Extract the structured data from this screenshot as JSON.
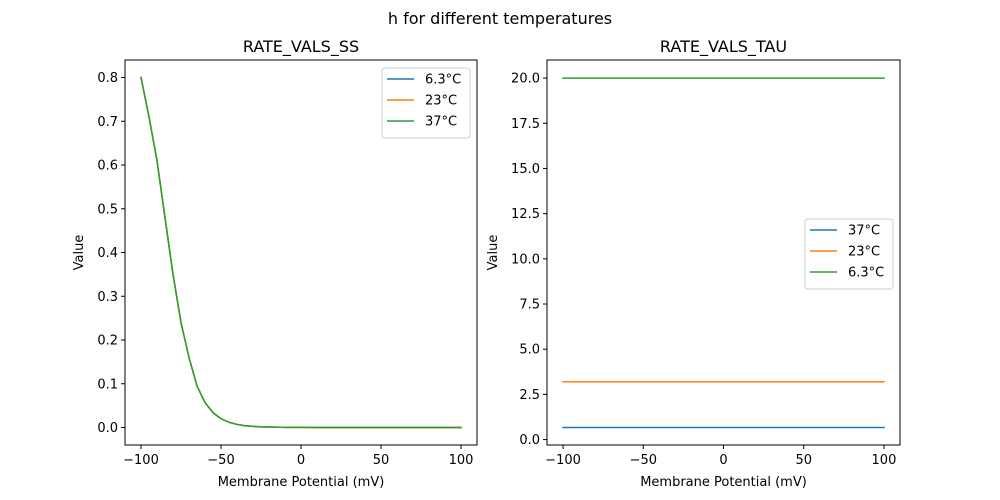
{
  "suptitle": "h for different temperatures",
  "colors": {
    "blue": "#1f77b4",
    "orange": "#ff7f0e",
    "green": "#2ca02c"
  },
  "chart_data": [
    {
      "type": "line",
      "title": "RATE_VALS_SS",
      "xlabel": "Membrane Potential (mV)",
      "ylabel": "Value",
      "xlim": [
        -110,
        110
      ],
      "ylim": [
        -0.04,
        0.84
      ],
      "xticks": [
        -100,
        -50,
        0,
        50,
        100
      ],
      "xtick_labels": [
        "−100",
        "−50",
        "0",
        "50",
        "100"
      ],
      "yticks": [
        0.0,
        0.1,
        0.2,
        0.3,
        0.4,
        0.5,
        0.6,
        0.7,
        0.8
      ],
      "ytick_labels": [
        "0.0",
        "0.1",
        "0.2",
        "0.3",
        "0.4",
        "0.5",
        "0.6",
        "0.7",
        "0.8"
      ],
      "legend_position": "top-right",
      "x": [
        -100,
        -95,
        -90,
        -85,
        -80,
        -75,
        -70,
        -65,
        -60,
        -55,
        -50,
        -45,
        -40,
        -35,
        -30,
        -25,
        -20,
        -10,
        0,
        10,
        20,
        40,
        60,
        80,
        100
      ],
      "series": [
        {
          "name": "6.3°C",
          "color": "#1f77b4",
          "values": [
            0.8,
            0.71,
            0.61,
            0.48,
            0.35,
            0.24,
            0.16,
            0.095,
            0.057,
            0.034,
            0.02,
            0.012,
            0.007,
            0.004,
            0.0025,
            0.0015,
            0.001,
            0.0004,
            0.0002,
            0.0001,
            0.0001,
            0.0,
            0.0,
            0.0,
            0.0
          ]
        },
        {
          "name": "23°C",
          "color": "#ff7f0e",
          "values": [
            0.8,
            0.71,
            0.61,
            0.48,
            0.35,
            0.24,
            0.16,
            0.095,
            0.057,
            0.034,
            0.02,
            0.012,
            0.007,
            0.004,
            0.0025,
            0.0015,
            0.001,
            0.0004,
            0.0002,
            0.0001,
            0.0001,
            0.0,
            0.0,
            0.0,
            0.0
          ]
        },
        {
          "name": "37°C",
          "color": "#2ca02c",
          "values": [
            0.8,
            0.71,
            0.61,
            0.48,
            0.35,
            0.24,
            0.16,
            0.095,
            0.057,
            0.034,
            0.02,
            0.012,
            0.007,
            0.004,
            0.0025,
            0.0015,
            0.001,
            0.0004,
            0.0002,
            0.0001,
            0.0001,
            0.0,
            0.0,
            0.0,
            0.0
          ]
        }
      ]
    },
    {
      "type": "line",
      "title": "RATE_VALS_TAU",
      "xlabel": "Membrane Potential (mV)",
      "ylabel": "Value",
      "xlim": [
        -110,
        110
      ],
      "ylim": [
        -0.3,
        21.0
      ],
      "xticks": [
        -100,
        -50,
        0,
        50,
        100
      ],
      "xtick_labels": [
        "−100",
        "−50",
        "0",
        "50",
        "100"
      ],
      "yticks": [
        0.0,
        2.5,
        5.0,
        7.5,
        10.0,
        12.5,
        15.0,
        17.5,
        20.0
      ],
      "ytick_labels": [
        "0.0",
        "2.5",
        "5.0",
        "7.5",
        "10.0",
        "12.5",
        "15.0",
        "17.5",
        "20.0"
      ],
      "legend_position": "center-right",
      "x": [
        -100,
        100
      ],
      "series": [
        {
          "name": "37°C",
          "color": "#1f77b4",
          "values": [
            0.67,
            0.67
          ]
        },
        {
          "name": "23°C",
          "color": "#ff7f0e",
          "values": [
            3.2,
            3.2
          ]
        },
        {
          "name": "6.3°C",
          "color": "#2ca02c",
          "values": [
            20.0,
            20.0
          ]
        }
      ]
    }
  ]
}
